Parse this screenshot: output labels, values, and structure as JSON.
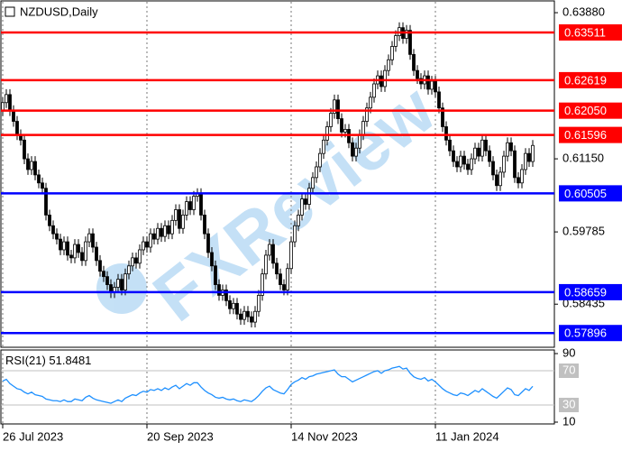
{
  "chart_data": {
    "type": "candlestick",
    "title": "NZDUSD,Daily",
    "watermark": "FXReview",
    "categories": [
      "26 Jul 2023",
      null,
      null,
      null,
      null,
      null,
      null,
      null,
      null,
      null,
      null,
      null,
      null,
      null,
      null,
      null,
      null,
      null,
      null,
      null,
      null,
      null,
      null,
      null,
      null,
      null,
      null,
      null,
      null,
      null,
      null,
      null,
      null,
      null,
      null,
      null,
      null,
      null,
      null,
      null,
      "20 Sep 2023",
      null,
      null,
      null,
      null,
      null,
      null,
      null,
      null,
      null,
      null,
      null,
      null,
      null,
      null,
      null,
      null,
      null,
      null,
      null,
      null,
      null,
      null,
      null,
      null,
      null,
      null,
      null,
      null,
      null,
      null,
      null,
      null,
      null,
      null,
      null,
      null,
      null,
      null,
      null,
      "14 Nov 2023",
      null,
      null,
      null,
      null,
      null,
      null,
      null,
      null,
      null,
      null,
      null,
      null,
      null,
      null,
      null,
      null,
      null,
      null,
      null,
      null,
      null,
      null,
      null,
      null,
      null,
      null,
      null,
      null,
      null,
      null,
      null,
      null,
      null,
      null,
      null,
      null,
      null,
      null,
      null,
      "11 Jan 2024",
      null,
      null,
      null,
      null,
      null,
      null,
      null,
      null,
      null,
      null,
      null,
      null,
      null,
      null,
      null,
      null,
      null,
      null,
      null,
      null,
      null,
      null,
      null,
      null,
      null,
      null,
      null
    ],
    "open": [
      0.6205,
      0.622,
      0.6235,
      0.6205,
      0.6185,
      0.616,
      0.615,
      0.6115,
      0.6095,
      0.611,
      0.6085,
      0.607,
      0.606,
      0.601,
      0.599,
      0.5975,
      0.5965,
      0.5945,
      0.596,
      0.5935,
      0.593,
      0.5955,
      0.594,
      0.5925,
      0.596,
      0.5975,
      0.595,
      0.5925,
      0.5905,
      0.5895,
      0.588,
      0.5865,
      0.5875,
      0.589,
      0.587,
      0.59,
      0.5915,
      0.593,
      0.592,
      0.5945,
      0.596,
      0.595,
      0.5975,
      0.5965,
      0.5985,
      0.597,
      0.599,
      0.5975,
      0.6,
      0.602,
      0.5985,
      0.601,
      0.6035,
      0.602,
      0.6045,
      0.605,
      0.601,
      0.5975,
      0.594,
      0.5915,
      0.588,
      0.586,
      0.587,
      0.585,
      0.5835,
      0.5845,
      0.5825,
      0.5815,
      0.583,
      0.582,
      0.581,
      0.583,
      0.586,
      0.59,
      0.5935,
      0.5955,
      0.592,
      0.59,
      0.588,
      0.587,
      0.591,
      0.596,
      0.599,
      0.601,
      0.604,
      0.603,
      0.606,
      0.608,
      0.61,
      0.6125,
      0.615,
      0.6175,
      0.62,
      0.6225,
      0.619,
      0.6165,
      0.617,
      0.6145,
      0.612,
      0.6135,
      0.616,
      0.6185,
      0.621,
      0.623,
      0.6255,
      0.627,
      0.625,
      0.628,
      0.63,
      0.6325,
      0.6345,
      0.636,
      0.634,
      0.6355,
      0.631,
      0.628,
      0.6265,
      0.6255,
      0.627,
      0.6245,
      0.626,
      0.624,
      0.621,
      0.6175,
      0.615,
      0.613,
      0.611,
      0.61,
      0.612,
      0.6105,
      0.6095,
      0.6115,
      0.6135,
      0.612,
      0.615,
      0.613,
      0.611,
      0.6085,
      0.6065,
      0.609,
      0.612,
      0.6145,
      0.613,
      0.608,
      0.607,
      0.6095,
      0.6125,
      0.611
    ],
    "high": [
      0.623,
      0.6245,
      0.6245,
      0.6215,
      0.6195,
      0.617,
      0.616,
      0.6125,
      0.612,
      0.612,
      0.6095,
      0.608,
      0.607,
      0.602,
      0.6,
      0.5985,
      0.5975,
      0.597,
      0.597,
      0.5945,
      0.5965,
      0.5965,
      0.595,
      0.597,
      0.5985,
      0.5985,
      0.596,
      0.5935,
      0.5915,
      0.5905,
      0.589,
      0.5885,
      0.59,
      0.59,
      0.591,
      0.5925,
      0.594,
      0.594,
      0.5955,
      0.597,
      0.597,
      0.5985,
      0.5985,
      0.5995,
      0.5995,
      0.6,
      0.6,
      0.601,
      0.603,
      0.603,
      0.602,
      0.6045,
      0.6045,
      0.6055,
      0.606,
      0.606,
      0.602,
      0.5985,
      0.595,
      0.5925,
      0.589,
      0.588,
      0.588,
      0.586,
      0.5855,
      0.5855,
      0.5835,
      0.584,
      0.584,
      0.583,
      0.584,
      0.587,
      0.591,
      0.5945,
      0.5965,
      0.5965,
      0.593,
      0.591,
      0.589,
      0.592,
      0.597,
      0.6,
      0.602,
      0.605,
      0.605,
      0.607,
      0.609,
      0.611,
      0.6135,
      0.616,
      0.6185,
      0.621,
      0.6235,
      0.6235,
      0.62,
      0.618,
      0.618,
      0.6155,
      0.6145,
      0.617,
      0.6195,
      0.622,
      0.624,
      0.6265,
      0.628,
      0.628,
      0.629,
      0.631,
      0.6335,
      0.6355,
      0.637,
      0.637,
      0.6365,
      0.6365,
      0.632,
      0.629,
      0.6275,
      0.628,
      0.628,
      0.627,
      0.627,
      0.625,
      0.622,
      0.6185,
      0.616,
      0.614,
      0.612,
      0.613,
      0.613,
      0.6115,
      0.6125,
      0.6145,
      0.6145,
      0.616,
      0.616,
      0.614,
      0.612,
      0.6095,
      0.61,
      0.613,
      0.6155,
      0.6155,
      0.614,
      0.609,
      0.6105,
      0.6135,
      0.6135,
      0.615
    ],
    "low": [
      0.6195,
      0.621,
      0.6195,
      0.6175,
      0.615,
      0.614,
      0.6105,
      0.6085,
      0.6085,
      0.6075,
      0.606,
      0.605,
      0.6,
      0.598,
      0.5965,
      0.5955,
      0.5935,
      0.5935,
      0.5925,
      0.592,
      0.592,
      0.593,
      0.5915,
      0.5915,
      0.595,
      0.594,
      0.5915,
      0.5895,
      0.5885,
      0.587,
      0.5855,
      0.5855,
      0.5865,
      0.586,
      0.586,
      0.589,
      0.5905,
      0.591,
      0.591,
      0.5935,
      0.594,
      0.594,
      0.5955,
      0.5955,
      0.596,
      0.596,
      0.5965,
      0.5965,
      0.599,
      0.5975,
      0.5975,
      0.6,
      0.601,
      0.601,
      0.6035,
      0.6,
      0.5965,
      0.593,
      0.5905,
      0.587,
      0.585,
      0.585,
      0.584,
      0.5825,
      0.5825,
      0.5815,
      0.5805,
      0.5805,
      0.581,
      0.58,
      0.58,
      0.582,
      0.585,
      0.589,
      0.5925,
      0.591,
      0.589,
      0.587,
      0.586,
      0.586,
      0.59,
      0.595,
      0.598,
      0.6,
      0.602,
      0.602,
      0.605,
      0.607,
      0.609,
      0.6115,
      0.614,
      0.6165,
      0.619,
      0.618,
      0.6155,
      0.6155,
      0.6135,
      0.611,
      0.611,
      0.6125,
      0.615,
      0.6175,
      0.62,
      0.622,
      0.6245,
      0.624,
      0.624,
      0.627,
      0.629,
      0.6315,
      0.6335,
      0.633,
      0.633,
      0.63,
      0.627,
      0.6255,
      0.6245,
      0.6245,
      0.6235,
      0.6235,
      0.623,
      0.62,
      0.6165,
      0.614,
      0.612,
      0.61,
      0.609,
      0.609,
      0.6095,
      0.6085,
      0.6085,
      0.6105,
      0.611,
      0.611,
      0.612,
      0.61,
      0.6075,
      0.6055,
      0.6055,
      0.608,
      0.611,
      0.612,
      0.607,
      0.606,
      0.606,
      0.6085,
      0.61,
      0.61
    ],
    "close": [
      0.622,
      0.6235,
      0.6205,
      0.6185,
      0.616,
      0.615,
      0.6115,
      0.6095,
      0.611,
      0.6085,
      0.607,
      0.606,
      0.601,
      0.599,
      0.5975,
      0.5965,
      0.5945,
      0.596,
      0.5935,
      0.593,
      0.5955,
      0.594,
      0.5925,
      0.596,
      0.5975,
      0.595,
      0.5925,
      0.5905,
      0.5895,
      0.588,
      0.5865,
      0.5875,
      0.589,
      0.587,
      0.59,
      0.5915,
      0.593,
      0.592,
      0.5945,
      0.596,
      0.595,
      0.5975,
      0.5965,
      0.5985,
      0.597,
      0.599,
      0.5975,
      0.6,
      0.602,
      0.5985,
      0.601,
      0.6035,
      0.602,
      0.6045,
      0.605,
      0.601,
      0.5975,
      0.594,
      0.5915,
      0.588,
      0.586,
      0.587,
      0.585,
      0.5835,
      0.5845,
      0.5825,
      0.5815,
      0.583,
      0.582,
      0.581,
      0.583,
      0.586,
      0.59,
      0.5935,
      0.5955,
      0.592,
      0.59,
      0.588,
      0.587,
      0.591,
      0.596,
      0.599,
      0.601,
      0.604,
      0.603,
      0.606,
      0.608,
      0.61,
      0.6125,
      0.615,
      0.6175,
      0.62,
      0.6225,
      0.619,
      0.6165,
      0.617,
      0.6145,
      0.612,
      0.6135,
      0.616,
      0.6185,
      0.621,
      0.623,
      0.6255,
      0.627,
      0.625,
      0.628,
      0.63,
      0.6325,
      0.6345,
      0.636,
      0.634,
      0.6355,
      0.631,
      0.628,
      0.6265,
      0.6255,
      0.627,
      0.6245,
      0.626,
      0.624,
      0.621,
      0.6175,
      0.615,
      0.613,
      0.611,
      0.61,
      0.612,
      0.6105,
      0.6095,
      0.6115,
      0.6135,
      0.612,
      0.615,
      0.613,
      0.611,
      0.6085,
      0.6065,
      0.609,
      0.612,
      0.6145,
      0.613,
      0.608,
      0.607,
      0.6095,
      0.6125,
      0.611,
      0.614
    ],
    "ylim": [
      0.5763,
      0.641
    ],
    "yticks": [
      {
        "value": 0.6388,
        "label": "0.63880"
      },
      {
        "value": 0.6115,
        "label": "0.61150"
      },
      0.59785,
      0.58435
    ],
    "levels": [
      {
        "value": 0.63511,
        "color": "#ff0000"
      },
      {
        "value": 0.62619,
        "color": "#ff0000"
      },
      {
        "value": 0.6205,
        "label": "0.62050",
        "color": "#ff0000"
      },
      {
        "value": 0.61596,
        "color": "#ff0000"
      },
      {
        "value": 0.60505,
        "color": "#0000ff"
      },
      {
        "value": 0.58659,
        "color": "#0000ff"
      },
      {
        "value": 0.57896,
        "color": "#0000ff"
      }
    ],
    "rsi": {
      "name": "RSI(21)",
      "color": "#1e90ff",
      "ylim": [
        10,
        90
      ],
      "yticks": [
        90,
        70,
        30,
        10
      ],
      "values": [
        58,
        60,
        55,
        52,
        49,
        48,
        45,
        43,
        45,
        42,
        41,
        40,
        37,
        36,
        35,
        35,
        34,
        36,
        34,
        34,
        37,
        36,
        35,
        39,
        41,
        38,
        36,
        35,
        34,
        33,
        32,
        34,
        36,
        34,
        38,
        40,
        42,
        41,
        44,
        46,
        45,
        48,
        47,
        49,
        47,
        50,
        48,
        51,
        53,
        49,
        52,
        55,
        53,
        56,
        56,
        51,
        47,
        44,
        42,
        39,
        38,
        39,
        37,
        36,
        37,
        35,
        34,
        36,
        35,
        34,
        37,
        41,
        46,
        50,
        52,
        48,
        46,
        44,
        43,
        48,
        54,
        57,
        59,
        62,
        60,
        63,
        64,
        66,
        67,
        68,
        69,
        70,
        71,
        66,
        63,
        63,
        60,
        57,
        59,
        61,
        63,
        65,
        67,
        69,
        70,
        67,
        70,
        71,
        73,
        74,
        75,
        72,
        73,
        67,
        63,
        61,
        60,
        62,
        58,
        60,
        57,
        53,
        49,
        46,
        44,
        42,
        41,
        44,
        43,
        41,
        44,
        47,
        45,
        49,
        46,
        43,
        40,
        38,
        42,
        46,
        50,
        48,
        42,
        41,
        45,
        49,
        47,
        51.8481
      ]
    }
  }
}
